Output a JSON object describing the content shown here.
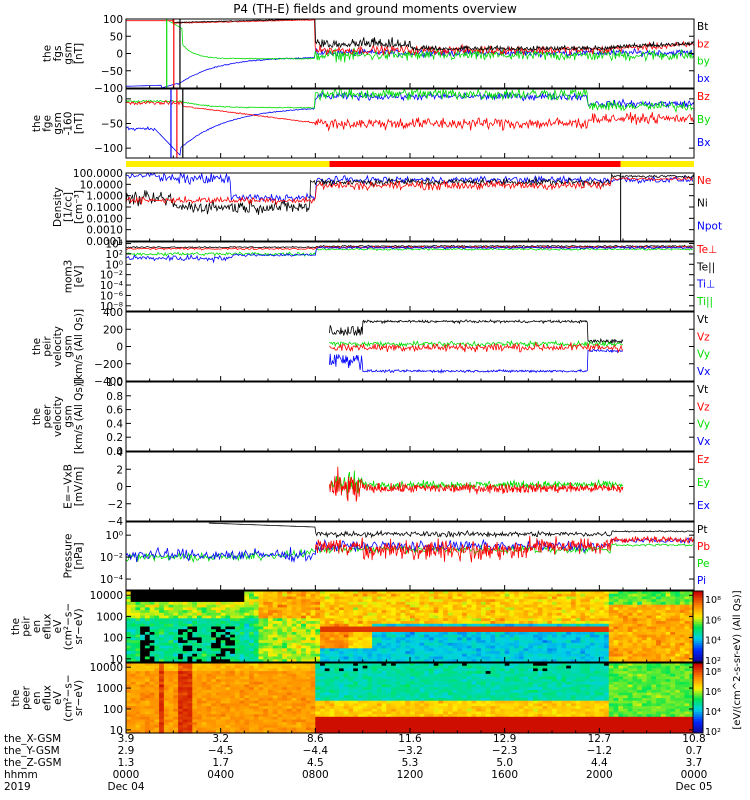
{
  "title": "P4 (TH-E) fields and ground moments overview",
  "colors": {
    "black": "#000000",
    "red": "#ff0000",
    "green": "#00dd00",
    "blue": "#0000ff",
    "yellow": "#ffee00",
    "orange": "#ffaa00"
  },
  "chart_data": [
    {
      "type": "line",
      "ylabel": [
        "the",
        "fgs",
        "gsm",
        "[nT]"
      ],
      "ylim": [
        -100,
        100
      ],
      "ticks": [
        "100",
        "50",
        "0",
        "−50",
        "−100"
      ],
      "tick_values": [
        100,
        50,
        0,
        -50,
        -100
      ],
      "legend": [
        {
          "label": "Bt",
          "color": "#000000"
        },
        {
          "label": "bz",
          "color": "#ff0000"
        },
        {
          "label": "by",
          "color": "#00dd00"
        },
        {
          "label": "bx",
          "color": "#0000ff"
        }
      ]
    },
    {
      "type": "line",
      "ylabel": [
        "the",
        "fge",
        "gsm",
        "-160",
        "[nT]"
      ],
      "ylim": [
        -120,
        20
      ],
      "ticks": [
        "0",
        "−50",
        "−100"
      ],
      "tick_values": [
        0,
        -50,
        -100
      ],
      "legend": [
        {
          "label": "Bz",
          "color": "#ff0000"
        },
        {
          "label": "By",
          "color": "#00dd00"
        },
        {
          "label": "Bx",
          "color": "#0000ff"
        }
      ]
    },
    {
      "type": "line",
      "ylabel": [
        "Density",
        "[1/cc]",
        "[cm⁻³]"
      ],
      "log": true,
      "ticks": [
        "100.0000",
        "10.0000",
        "1.0000",
        "0.1000",
        "0.0100",
        "0.0010",
        "0.0001"
      ],
      "tick_values": [
        2,
        1,
        0,
        -1,
        -2,
        -3,
        -4
      ],
      "legend": [
        {
          "label": "Ne",
          "color": "#ff0000"
        },
        {
          "label": "Ni",
          "color": "#000000"
        },
        {
          "label": "Npot",
          "color": "#0000ff"
        }
      ]
    },
    {
      "type": "line",
      "ylabel": [
        "mom3",
        "[eV]"
      ],
      "log": true,
      "ticks": [
        "10⁴",
        "10²",
        "10⁰",
        "10⁻²",
        "10⁻⁴",
        "10⁻⁶",
        "10⁻⁸"
      ],
      "tick_values": [
        4,
        2,
        0,
        -2,
        -4,
        -6,
        -8
      ],
      "legend": [
        {
          "label": "Te⊥",
          "color": "#ff0000"
        },
        {
          "label": "Te||",
          "color": "#000000"
        },
        {
          "label": "Ti⊥",
          "color": "#0000ff"
        },
        {
          "label": "Ti||",
          "color": "#00dd00"
        }
      ]
    },
    {
      "type": "line",
      "ylabel": [
        "the",
        "peir",
        "velocity",
        "gsm",
        "[km/s (All Qs)]"
      ],
      "ylim": [
        -400,
        400
      ],
      "ticks": [
        "400",
        "200",
        "0",
        "−200",
        "−400"
      ],
      "tick_values": [
        400,
        200,
        0,
        -200,
        -400
      ],
      "legend": [
        {
          "label": "Vt",
          "color": "#000000"
        },
        {
          "label": "Vz",
          "color": "#ff0000"
        },
        {
          "label": "Vy",
          "color": "#00dd00"
        },
        {
          "label": "Vx",
          "color": "#0000ff"
        }
      ]
    },
    {
      "type": "line",
      "ylabel": [
        "the",
        "peer",
        "velocity",
        "gsm",
        "[km/s (All Qs)]"
      ],
      "ylim": [
        0,
        1
      ],
      "ticks": [
        "1.0",
        "0.8",
        "0.6",
        "0.4",
        "0.2",
        "0.0"
      ],
      "tick_values": [
        1.0,
        0.8,
        0.6,
        0.4,
        0.2,
        0.0
      ],
      "legend": [
        {
          "label": "Vt",
          "color": "#000000"
        },
        {
          "label": "Vz",
          "color": "#ff0000"
        },
        {
          "label": "Vy",
          "color": "#00dd00"
        },
        {
          "label": "Vx",
          "color": "#0000ff"
        }
      ]
    },
    {
      "type": "line",
      "ylabel": [
        "E=−VxB",
        "[mV/m]"
      ],
      "ylim": [
        -4,
        4
      ],
      "ticks": [
        "4",
        "2",
        "0",
        "−2",
        "−4"
      ],
      "tick_values": [
        4,
        2,
        0,
        -2,
        -4
      ],
      "legend": [
        {
          "label": "Ez",
          "color": "#ff0000"
        },
        {
          "label": "Ey",
          "color": "#00dd00"
        },
        {
          "label": "Ex",
          "color": "#0000ff"
        }
      ]
    },
    {
      "type": "line",
      "ylabel": [
        "Pressure",
        "[nPa]"
      ],
      "log": true,
      "ticks": [
        "10⁰",
        "10⁻²",
        "10⁻⁴"
      ],
      "tick_values": [
        0,
        -2,
        -4
      ],
      "legend": [
        {
          "label": "Pt",
          "color": "#000000"
        },
        {
          "label": "Pb",
          "color": "#ff0000"
        },
        {
          "label": "Pe",
          "color": "#00dd00"
        },
        {
          "label": "Pi",
          "color": "#0000ff"
        }
      ]
    },
    {
      "type": "heatmap",
      "ylabel": [
        "the",
        "peir",
        "en",
        "eflux",
        "eV",
        "(cm²−s−",
        "sr−eV)"
      ],
      "ticks": [
        "10000",
        "1000",
        "100",
        "10"
      ],
      "tick_values": [
        4,
        3,
        2,
        1
      ],
      "colorbar_ticks": [
        "10⁸",
        "10⁶",
        "10⁴",
        "10²"
      ],
      "colorbar_label": "[eV/(cm^2-s-sr-eV) (All Qs)]"
    },
    {
      "type": "heatmap",
      "ylabel": [
        "the",
        "peer",
        "en",
        "eflux",
        "eV",
        "(cm²−s−",
        "sr−eV)"
      ],
      "ticks": [
        "10000",
        "1000",
        "100",
        "10"
      ],
      "tick_values": [
        4,
        3,
        2,
        1
      ],
      "colorbar_ticks": [
        "10⁸",
        "10⁶",
        "10⁴",
        "10²"
      ],
      "colorbar_label": "[eV/(cm^2-s-sr-eV) (All Qs)]"
    }
  ],
  "xaxis": {
    "hours": [
      0,
      4,
      8,
      12,
      16,
      20,
      24
    ],
    "rows": [
      {
        "label": "the_X-GSM",
        "values": [
          "3.9",
          "3.2",
          "8.6",
          "11.6",
          "12.9",
          "12.7",
          "10.8"
        ]
      },
      {
        "label": "the_Y-GSM",
        "values": [
          "2.9",
          "−4.5",
          "−4.4",
          "−3.2",
          "−2.3",
          "−1.2",
          "0.7"
        ]
      },
      {
        "label": "the_Z-GSM",
        "values": [
          "1.3",
          "1.7",
          "4.5",
          "5.3",
          "5.0",
          "4.4",
          "3.7"
        ]
      },
      {
        "label": "hhmm",
        "values": [
          "0000",
          "0400",
          "0800",
          "1200",
          "1600",
          "2000",
          "0000"
        ]
      },
      {
        "label": "2019",
        "values": [
          "Dec 04",
          "",
          "",
          "",
          "",
          "",
          "Dec 05"
        ]
      }
    ]
  }
}
